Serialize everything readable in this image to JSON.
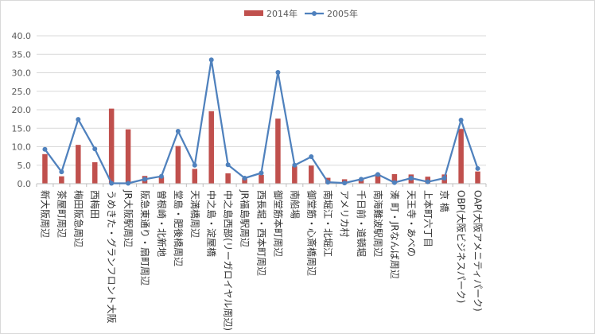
{
  "chart_data": {
    "type": "bar+line",
    "title": "",
    "xlabel": "",
    "ylabel": "",
    "ylim": [
      0,
      40
    ],
    "yticks": [
      "0.0",
      "5.0",
      "10.0",
      "15.0",
      "20.0",
      "25.0",
      "30.0",
      "35.0",
      "40.0"
    ],
    "legend_position": "top-center",
    "grid": true,
    "categories": [
      "新大阪周辺",
      "茶屋町周辺",
      "梅田阪急周辺",
      "西梅田",
      "うめきた・グランフロント大阪",
      "JR大阪駅周辺",
      "阪急東通り・扇町周辺",
      "曽根崎・北新地",
      "堂島・肥後橋周辺",
      "天満橋周辺",
      "中之島・淀屋橋",
      "中之島西部(リーガロイヤル周辺)",
      "JR福島駅周辺",
      "西長堀・西本町周辺",
      "御堂筋本町周辺",
      "南船場",
      "御堂筋・心斎橋周辺",
      "南堀江・北堀江",
      "アメリカ村",
      "千日前・道頓堀",
      "南海難波駅周辺",
      "湊 町・JRなんば周辺",
      "天王寺・あべの",
      "上本町六丁目",
      "京 橋",
      "OBP(大阪ビジネスパーク)",
      "OAP(大阪アメニティパーク)"
    ],
    "series": [
      {
        "name": "2014年",
        "type": "bar",
        "color": "#c0504d",
        "values": [
          8.0,
          2.0,
          10.5,
          5.8,
          20.3,
          14.7,
          2.1,
          1.8,
          10.2,
          4.0,
          19.6,
          2.8,
          1.5,
          2.4,
          17.6,
          4.7,
          4.9,
          1.6,
          1.2,
          1.3,
          2.7,
          2.6,
          2.5,
          1.9,
          2.5,
          14.8,
          3.3
        ]
      },
      {
        "name": "2005年",
        "type": "line",
        "color": "#4f81bd",
        "values": [
          9.3,
          3.2,
          17.4,
          9.4,
          0.1,
          0.1,
          1.2,
          2.0,
          14.2,
          5.0,
          33.5,
          5.1,
          1.5,
          2.9,
          30.1,
          5.0,
          7.3,
          0.4,
          0.2,
          1.2,
          2.5,
          0.3,
          1.5,
          0.5,
          1.5,
          17.2,
          4.1
        ]
      }
    ]
  }
}
